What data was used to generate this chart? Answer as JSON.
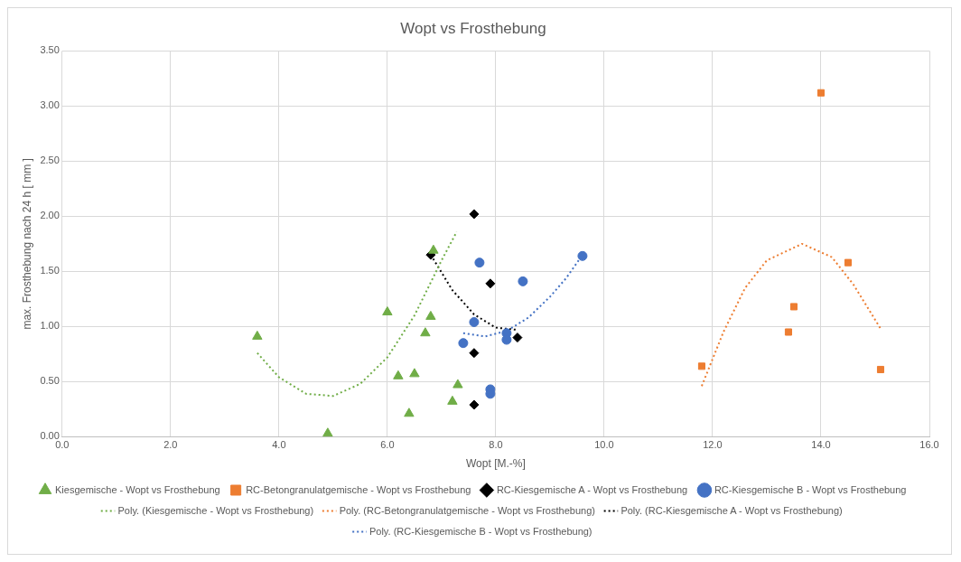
{
  "chart_data": {
    "type": "scatter",
    "title": "Wopt vs Frosthebung",
    "xlabel": "Wopt [M.-%]",
    "ylabel": "max. Frosthebung nach 24 h [ mm ]",
    "xlim": [
      0,
      16
    ],
    "xticks": [
      {
        "value": 0,
        "label": "0.0"
      },
      {
        "value": 2,
        "label": "2.0"
      },
      {
        "value": 4,
        "label": "4.0"
      },
      {
        "value": 6,
        "label": "6.0"
      },
      {
        "value": 8,
        "label": "8.0"
      },
      {
        "value": 10,
        "label": "10.0"
      },
      {
        "value": 12,
        "label": "12.0"
      },
      {
        "value": 14,
        "label": "14.0"
      },
      {
        "value": 16,
        "label": "16.0"
      }
    ],
    "ylim": [
      0,
      3.5
    ],
    "yticks": [
      {
        "value": 0,
        "label": "0.00"
      },
      {
        "value": 0.5,
        "label": "0.50"
      },
      {
        "value": 1,
        "label": "1.00"
      },
      {
        "value": 1.5,
        "label": "1.50"
      },
      {
        "value": 2,
        "label": "2.00"
      },
      {
        "value": 2.5,
        "label": "2.50"
      },
      {
        "value": 3,
        "label": "3.00"
      },
      {
        "value": 3.5,
        "label": "3.50"
      }
    ],
    "grid": true,
    "legend": "bottom",
    "series": [
      {
        "name": "Kiesgemische - Wopt vs Frosthebung",
        "color": "#70ad47",
        "marker": "triangle",
        "x": [
          3.6,
          4.9,
          6.0,
          6.2,
          6.4,
          6.5,
          6.7,
          6.8,
          6.85,
          7.2,
          7.3
        ],
        "values": [
          0.91,
          0.03,
          1.13,
          0.55,
          0.21,
          0.57,
          0.94,
          1.09,
          1.69,
          0.32,
          0.47
        ]
      },
      {
        "name": "RC-Betongranulatgemische - Wopt vs Frosthebung",
        "color": "#ed7d31",
        "marker": "square",
        "x": [
          11.8,
          13.4,
          13.5,
          14.0,
          14.5,
          15.1
        ],
        "values": [
          0.64,
          0.95,
          1.18,
          3.12,
          1.58,
          0.61
        ]
      },
      {
        "name": "RC-Kiesgemische A - Wopt vs Frosthebung",
        "color": "#000000",
        "marker": "diamond",
        "x": [
          6.8,
          7.6,
          7.9,
          8.4,
          7.6,
          7.6
        ],
        "values": [
          1.65,
          2.02,
          1.39,
          0.9,
          0.76,
          0.29
        ]
      },
      {
        "name": "RC-Kiesgemische B - Wopt vs Frosthebung",
        "color": "#4472c4",
        "marker": "circle",
        "x": [
          7.7,
          8.5,
          7.6,
          8.2,
          8.2,
          7.4,
          7.9,
          7.9,
          9.6
        ],
        "values": [
          1.58,
          1.41,
          1.04,
          0.94,
          0.88,
          0.85,
          0.43,
          0.39,
          1.64
        ]
      },
      {
        "name": "Poly. (Kiesgemische - Wopt vs Frosthebung)",
        "type": "line",
        "color": "#70ad47",
        "marker": "none",
        "line_style": "dotted",
        "x": [
          3.6,
          4.0,
          4.5,
          5.0,
          5.5,
          6.0,
          6.5,
          7.0,
          7.28
        ],
        "values": [
          0.76,
          0.54,
          0.39,
          0.37,
          0.48,
          0.72,
          1.1,
          1.6,
          1.86
        ]
      },
      {
        "name": "Poly. (RC-Betongranulatgemische - Wopt vs Frosthebung)",
        "type": "line",
        "color": "#ed7d31",
        "marker": "none",
        "line_style": "dotted",
        "x": [
          11.8,
          12.2,
          12.6,
          13.0,
          13.65,
          14.2,
          14.6,
          15.1
        ],
        "values": [
          0.46,
          0.95,
          1.35,
          1.6,
          1.75,
          1.63,
          1.38,
          0.98
        ]
      },
      {
        "name": "Poly. (RC-Kiesgemische A - Wopt vs Frosthebung)",
        "type": "line",
        "color": "#000000",
        "marker": "none",
        "line_style": "dotted",
        "x": [
          6.8,
          7.2,
          7.6,
          8.0,
          8.4
        ],
        "values": [
          1.65,
          1.33,
          1.11,
          0.99,
          0.97
        ]
      },
      {
        "name": "Poly. (RC-Kiesgemische B - Wopt vs Frosthebung)",
        "type": "line",
        "color": "#4472c4",
        "marker": "none",
        "line_style": "dotted",
        "x": [
          7.4,
          7.8,
          8.2,
          8.6,
          9.0,
          9.3,
          9.6
        ],
        "values": [
          0.94,
          0.91,
          0.96,
          1.08,
          1.27,
          1.44,
          1.65
        ]
      }
    ]
  }
}
